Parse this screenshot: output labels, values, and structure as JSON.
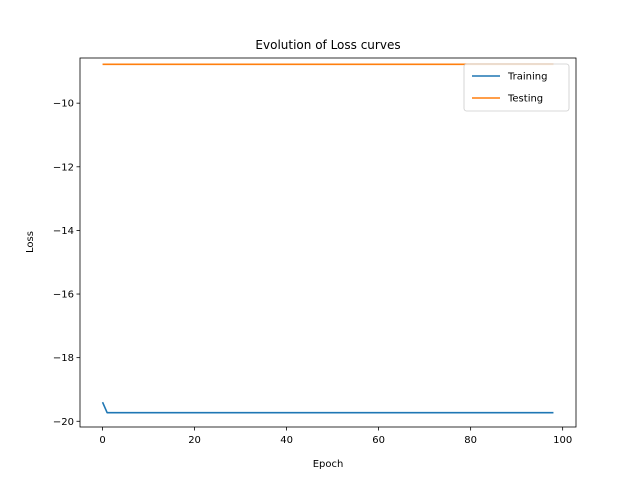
{
  "chart_data": {
    "type": "line",
    "title": "Evolution of Loss curves",
    "xlabel": "Epoch",
    "ylabel": "Loss",
    "xlim": [
      -4.9,
      102.9
    ],
    "ylim": [
      -20.18,
      -8.58
    ],
    "xticks": [
      0,
      20,
      40,
      60,
      80,
      100
    ],
    "yticks": [
      -20,
      -18,
      -16,
      -14,
      -12,
      -10
    ],
    "tick_format": "minus-sign",
    "grid": false,
    "legend": "top-right",
    "series": [
      {
        "name": "Training",
        "color": "#1f77b4",
        "x": [
          0,
          1,
          98
        ],
        "y": [
          -19.4,
          -19.73,
          -19.73
        ]
      },
      {
        "name": "Testing",
        "color": "#ff7f0e",
        "x": [
          0,
          98
        ],
        "y": [
          -8.78,
          -8.78
        ]
      }
    ]
  }
}
